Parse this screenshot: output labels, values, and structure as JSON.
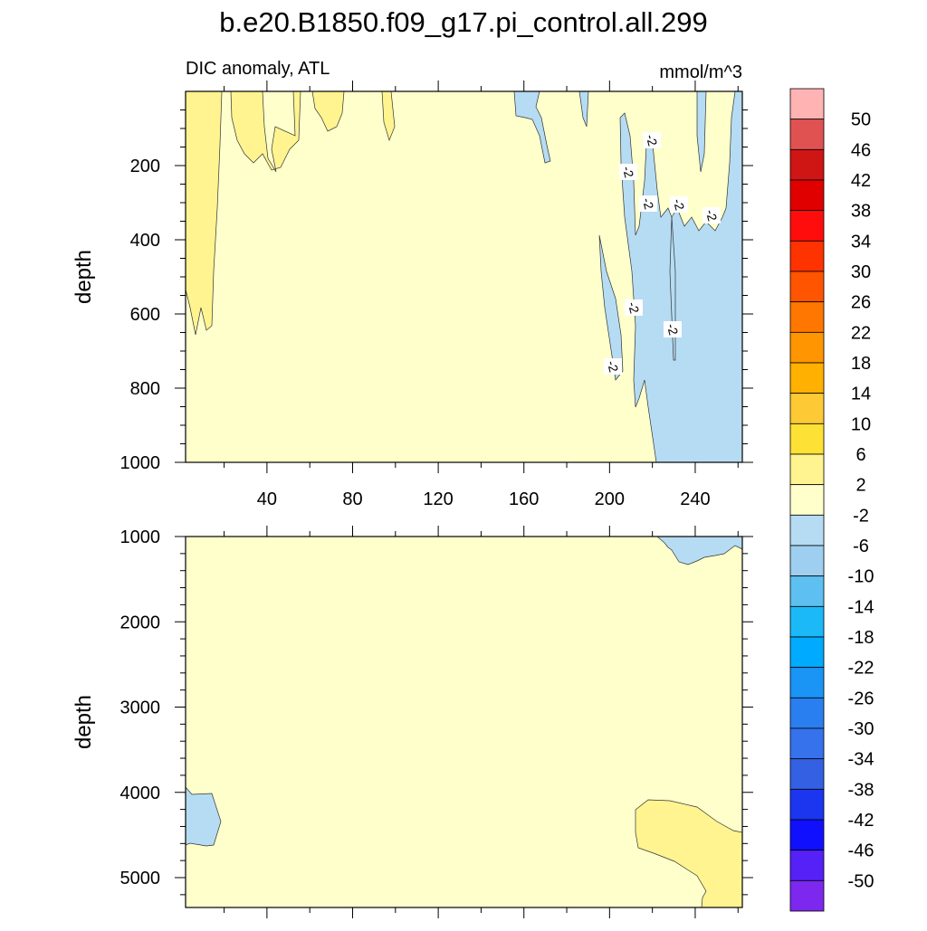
{
  "title": "b.e20.B1850.f09_g17.pi_control.all.299",
  "left_subtitle": "DIC anomaly, ATL",
  "right_subtitle": "mmol/m^3",
  "chart_data": [
    {
      "type": "heatmap",
      "panel": "upper",
      "title": "b.e20.B1850.f09_g17.pi_control.all.299",
      "subtitle_left": "DIC anomaly, ATL",
      "subtitle_right": "mmol/m^3",
      "xlabel": "",
      "ylabel": "depth",
      "xlim": [
        2,
        262
      ],
      "ylim": [
        0,
        1000
      ],
      "y_reversed": true,
      "x_ticks": [
        40,
        80,
        120,
        160,
        200,
        240
      ],
      "y_ticks": [
        200,
        400,
        600,
        800,
        1000
      ],
      "background_level": "-2 to 2",
      "regions": [
        {
          "level": "2 to 6",
          "description": "near-surface positive anomaly, x≈2-30 to ~650 m, patches to x≈100 in top 200 m"
        },
        {
          "level": "-6 to -2",
          "description": "negative anomaly x≈155-262, deepening to 1000 m for x>215"
        }
      ],
      "contour_labels": [
        "-2",
        "-2",
        "-2",
        "-2",
        "-2",
        "-2",
        "-2",
        "-2"
      ]
    },
    {
      "type": "heatmap",
      "panel": "lower",
      "xlabel": "",
      "ylabel": "depth",
      "xlim": [
        2,
        262
      ],
      "ylim": [
        1000,
        5350
      ],
      "y_reversed": true,
      "y_ticks": [
        1000,
        2000,
        3000,
        4000,
        5000
      ],
      "background_level": "-2 to 2",
      "regions": [
        {
          "level": "-6 to -2",
          "description": "x≈2-18, depth≈3950-4650"
        },
        {
          "level": "-6 to -2",
          "description": "x≈225-262, depth≈1000-1330"
        },
        {
          "level": "2 to 6",
          "description": "x≈200-262, depth≈4150-5350"
        }
      ]
    }
  ],
  "colorbar": {
    "labels": [
      "50",
      "46",
      "42",
      "38",
      "34",
      "30",
      "26",
      "22",
      "18",
      "14",
      "10",
      "6",
      "2",
      "-2",
      "-6",
      "-10",
      "-14",
      "-18",
      "-22",
      "-26",
      "-30",
      "-34",
      "-38",
      "-42",
      "-46",
      "-50"
    ],
    "colors": [
      "#ffb3b3",
      "#e05252",
      "#d01515",
      "#e00000",
      "#ff0d0d",
      "#ff3300",
      "#ff5500",
      "#ff7700",
      "#ff9500",
      "#ffb000",
      "#fdc935",
      "#fde135",
      "#fff48f",
      "#ffffcc",
      "#b5dcf3",
      "#9ecff0",
      "#5dc0f0",
      "#1cb9f8",
      "#00aaff",
      "#1a94f5",
      "#2a7ff0",
      "#3672ec",
      "#3460e4",
      "#1c36f0",
      "#1010ff",
      "#5521f7",
      "#7c28ee"
    ]
  }
}
